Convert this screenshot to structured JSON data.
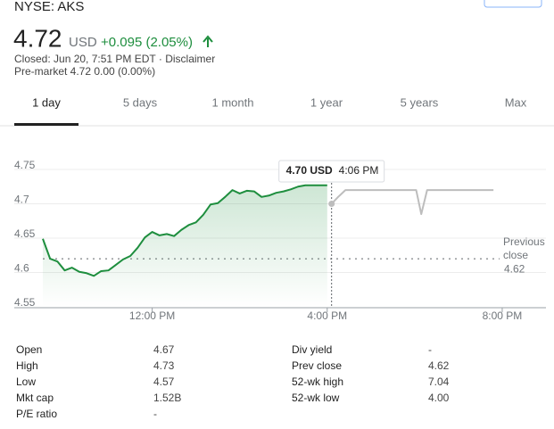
{
  "header": {
    "symbol": "NYSE: AKS",
    "price": "4.72",
    "currency": "USD",
    "change": "+0.095 (2.05%)",
    "closed": "Closed: Jun 20, 7:51 PM EDT · Disclaimer",
    "premarket": "Pre-market 4.72 0.00 (0.00%)"
  },
  "tabs": [
    "1 day",
    "5 days",
    "1 month",
    "1 year",
    "5 years",
    "Max"
  ],
  "chart_data": {
    "type": "line",
    "xlim": [
      570,
      1260
    ],
    "xticks": [
      {
        "value": 720,
        "label": "12:00 PM"
      },
      {
        "value": 960,
        "label": "4:00 PM"
      },
      {
        "value": 1200,
        "label": "8:00 PM"
      }
    ],
    "ylim": [
      4.55,
      4.75
    ],
    "yticks": [
      4.55,
      4.6,
      4.65,
      4.7,
      4.75
    ],
    "grid": true,
    "series": [
      {
        "color": "#1e8e3e",
        "fill": true,
        "x": [
          570,
          580,
          590,
          600,
          610,
          620,
          630,
          640,
          650,
          660,
          670,
          680,
          690,
          700,
          710,
          720,
          730,
          740,
          750,
          760,
          770,
          780,
          790,
          800,
          810,
          820,
          830,
          840,
          850,
          860,
          870,
          880,
          890,
          900,
          910,
          920,
          930,
          940,
          950,
          960
        ],
        "values": [
          4.649,
          4.62,
          4.616,
          4.603,
          4.607,
          4.601,
          4.599,
          4.595,
          4.602,
          4.603,
          4.611,
          4.619,
          4.624,
          4.636,
          4.651,
          4.659,
          4.654,
          4.656,
          4.653,
          4.662,
          4.669,
          4.673,
          4.684,
          4.699,
          4.701,
          4.71,
          4.72,
          4.715,
          4.719,
          4.718,
          4.71,
          4.712,
          4.716,
          4.718,
          4.721,
          4.725,
          4.727,
          4.727,
          4.727,
          4.727
        ]
      },
      {
        "color": "#bdbdbd",
        "fill": false,
        "x": [
          966,
          975,
          985,
          1082,
          1089,
          1097,
          1188
        ],
        "values": [
          4.7,
          4.71,
          4.72,
          4.72,
          4.685,
          4.72,
          4.72
        ]
      }
    ],
    "prev_close_label": "Previous close",
    "prev_close": 4.62,
    "tooltip": {
      "value": "4.70 USD",
      "time": "4:06 PM",
      "x": 966
    }
  },
  "table": {
    "rows": [
      [
        "Open",
        "4.67",
        "Div yield",
        "-"
      ],
      [
        "High",
        "4.73",
        "Prev close",
        "4.62"
      ],
      [
        "Low",
        "4.57",
        "52-wk high",
        "7.04"
      ],
      [
        "Mkt cap",
        "1.52B",
        "52-wk low",
        "4.00"
      ],
      [
        "P/E ratio",
        "-"
      ]
    ]
  }
}
